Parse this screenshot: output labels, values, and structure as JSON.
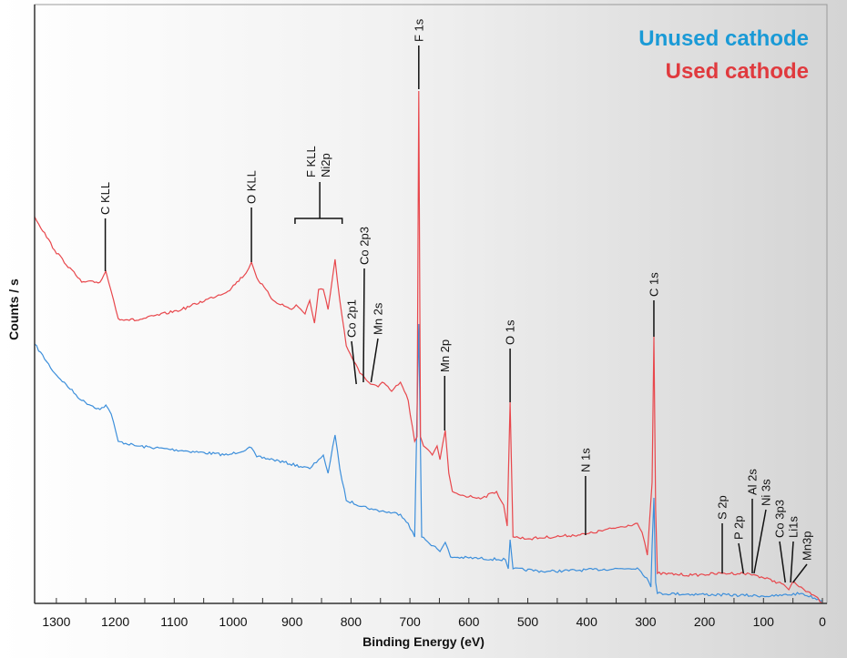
{
  "chart_data": {
    "type": "line",
    "title": "",
    "xlabel": "Binding Energy (eV)",
    "ylabel": "Counts / s",
    "xlim": [
      1340,
      0
    ],
    "x_reversed": true,
    "ylim": [
      0,
      658
    ],
    "y_ticks_shown": false,
    "grid": false,
    "legend_placement": "top-right",
    "x_ticks": [
      1300,
      1200,
      1100,
      1000,
      900,
      800,
      700,
      600,
      500,
      400,
      300,
      200,
      100,
      0
    ],
    "x_tick_labels": [
      "1300",
      "1200",
      "1100",
      "1000",
      "900",
      "800",
      "700",
      "600",
      "500",
      "400",
      "300",
      "200",
      "100",
      "0"
    ],
    "series": [
      {
        "name": "Unused cathode",
        "color": "#3d8fdb",
        "legend_color": "#1a9ad6",
        "points": [
          [
            1337,
            285
          ],
          [
            1303,
            253
          ],
          [
            1257,
            223
          ],
          [
            1226,
            213
          ],
          [
            1216,
            218
          ],
          [
            1207,
            208
          ],
          [
            1195,
            178
          ],
          [
            1164,
            173
          ],
          [
            1087,
            168
          ],
          [
            1009,
            163
          ],
          [
            969,
            171
          ],
          [
            960,
            161
          ],
          [
            932,
            158
          ],
          [
            870,
            148
          ],
          [
            855,
            158
          ],
          [
            847,
            163
          ],
          [
            839,
            143
          ],
          [
            827,
            185
          ],
          [
            819,
            148
          ],
          [
            808,
            113
          ],
          [
            762,
            103
          ],
          [
            716,
            98
          ],
          [
            703,
            88
          ],
          [
            692,
            73
          ],
          [
            685,
            307
          ],
          [
            680,
            73
          ],
          [
            654,
            60
          ],
          [
            649,
            57
          ],
          [
            640,
            67
          ],
          [
            631,
            51
          ],
          [
            538,
            48
          ],
          [
            533,
            38
          ],
          [
            530,
            70
          ],
          [
            525,
            38
          ],
          [
            468,
            35
          ],
          [
            314,
            39
          ],
          [
            298,
            28
          ],
          [
            291,
            18
          ],
          [
            289,
            63
          ],
          [
            286,
            116
          ],
          [
            283,
            23
          ],
          [
            280,
            11
          ],
          [
            82,
            8
          ],
          [
            36,
            11
          ],
          [
            0,
            3
          ]
        ]
      },
      {
        "name": "Used cathode",
        "color": "#e8474c",
        "legend_color": "#e03a3e",
        "points": [
          [
            1337,
            425
          ],
          [
            1303,
            388
          ],
          [
            1257,
            353
          ],
          [
            1226,
            353
          ],
          [
            1216,
            365
          ],
          [
            1207,
            343
          ],
          [
            1195,
            313
          ],
          [
            1164,
            311
          ],
          [
            1087,
            323
          ],
          [
            1009,
            343
          ],
          [
            978,
            363
          ],
          [
            969,
            375
          ],
          [
            960,
            358
          ],
          [
            932,
            333
          ],
          [
            901,
            323
          ],
          [
            893,
            328
          ],
          [
            878,
            318
          ],
          [
            870,
            333
          ],
          [
            862,
            308
          ],
          [
            855,
            345
          ],
          [
            847,
            345
          ],
          [
            839,
            323
          ],
          [
            827,
            378
          ],
          [
            819,
            333
          ],
          [
            808,
            283
          ],
          [
            785,
            253
          ],
          [
            770,
            243
          ],
          [
            754,
            238
          ],
          [
            747,
            243
          ],
          [
            731,
            233
          ],
          [
            716,
            243
          ],
          [
            703,
            223
          ],
          [
            692,
            178
          ],
          [
            688,
            183
          ],
          [
            685,
            563
          ],
          [
            682,
            183
          ],
          [
            677,
            173
          ],
          [
            662,
            163
          ],
          [
            654,
            173
          ],
          [
            649,
            158
          ],
          [
            640,
            190
          ],
          [
            634,
            143
          ],
          [
            628,
            123
          ],
          [
            607,
            118
          ],
          [
            577,
            116
          ],
          [
            553,
            123
          ],
          [
            541,
            108
          ],
          [
            535,
            85
          ],
          [
            530,
            221
          ],
          [
            525,
            73
          ],
          [
            499,
            71
          ],
          [
            402,
            76
          ],
          [
            314,
            88
          ],
          [
            306,
            78
          ],
          [
            297,
            53
          ],
          [
            289,
            133
          ],
          [
            286,
            293
          ],
          [
            283,
            103
          ],
          [
            280,
            33
          ],
          [
            221,
            31
          ],
          [
            170,
            33
          ],
          [
            134,
            33
          ],
          [
            113,
            31
          ],
          [
            66,
            21
          ],
          [
            57,
            15
          ],
          [
            51,
            23
          ],
          [
            36,
            18
          ],
          [
            28,
            13
          ],
          [
            12,
            8
          ],
          [
            0,
            0
          ]
        ]
      }
    ],
    "annotations": [
      {
        "label": "C KLL",
        "be": 1217,
        "top": 423,
        "bottom": 365
      },
      {
        "label": "O KLL",
        "be": 969,
        "top": 435,
        "bottom": 375
      },
      {
        "label": "Co 2p1",
        "be": 791,
        "top": 288,
        "bottom": 241
      },
      {
        "label": "Co 2p3",
        "be": 779,
        "top": 368,
        "bottom": 243
      },
      {
        "label": "Mn 2s",
        "be": 757,
        "bottom_be": 766,
        "top": 291,
        "bottom": 243
      },
      {
        "label": "F 1s",
        "be": 685,
        "top": 613,
        "bottom": 565
      },
      {
        "label": "Mn 2p",
        "be": 641,
        "top": 250,
        "bottom": 190
      },
      {
        "label": "O 1s",
        "be": 530,
        "top": 280,
        "bottom": 221
      },
      {
        "label": "N 1s",
        "be": 402,
        "top": 140,
        "bottom": 75
      },
      {
        "label": "C 1s",
        "be": 286,
        "top": 333,
        "bottom": 293
      },
      {
        "label": "S 2p",
        "be": 170,
        "top": 88,
        "bottom": 33
      },
      {
        "label": "P 2p",
        "be": 134,
        "top": 66,
        "bottom": 33
      },
      {
        "label": "Al 2s",
        "be": 119,
        "top": 115,
        "bottom": 33
      },
      {
        "label": "Ni 3s",
        "be": 113,
        "bottom_be": 116,
        "top": 103,
        "bottom": 33
      },
      {
        "label": "Co 3p3",
        "be": 70,
        "bottom_be": 63,
        "top": 68,
        "bottom": 23
      },
      {
        "label": "Li1s",
        "be": 54,
        "top": 68,
        "bottom": 23
      },
      {
        "label": "Mn3p",
        "be": 33,
        "bottom_be": 50,
        "top": 43,
        "bottom": 23
      }
    ],
    "bracket_annotation": {
      "labels": [
        "F KLL",
        "Ni2p"
      ],
      "be_range": [
        895,
        815
      ],
      "be_center": 853,
      "y": 423,
      "stem_top": 463
    }
  }
}
